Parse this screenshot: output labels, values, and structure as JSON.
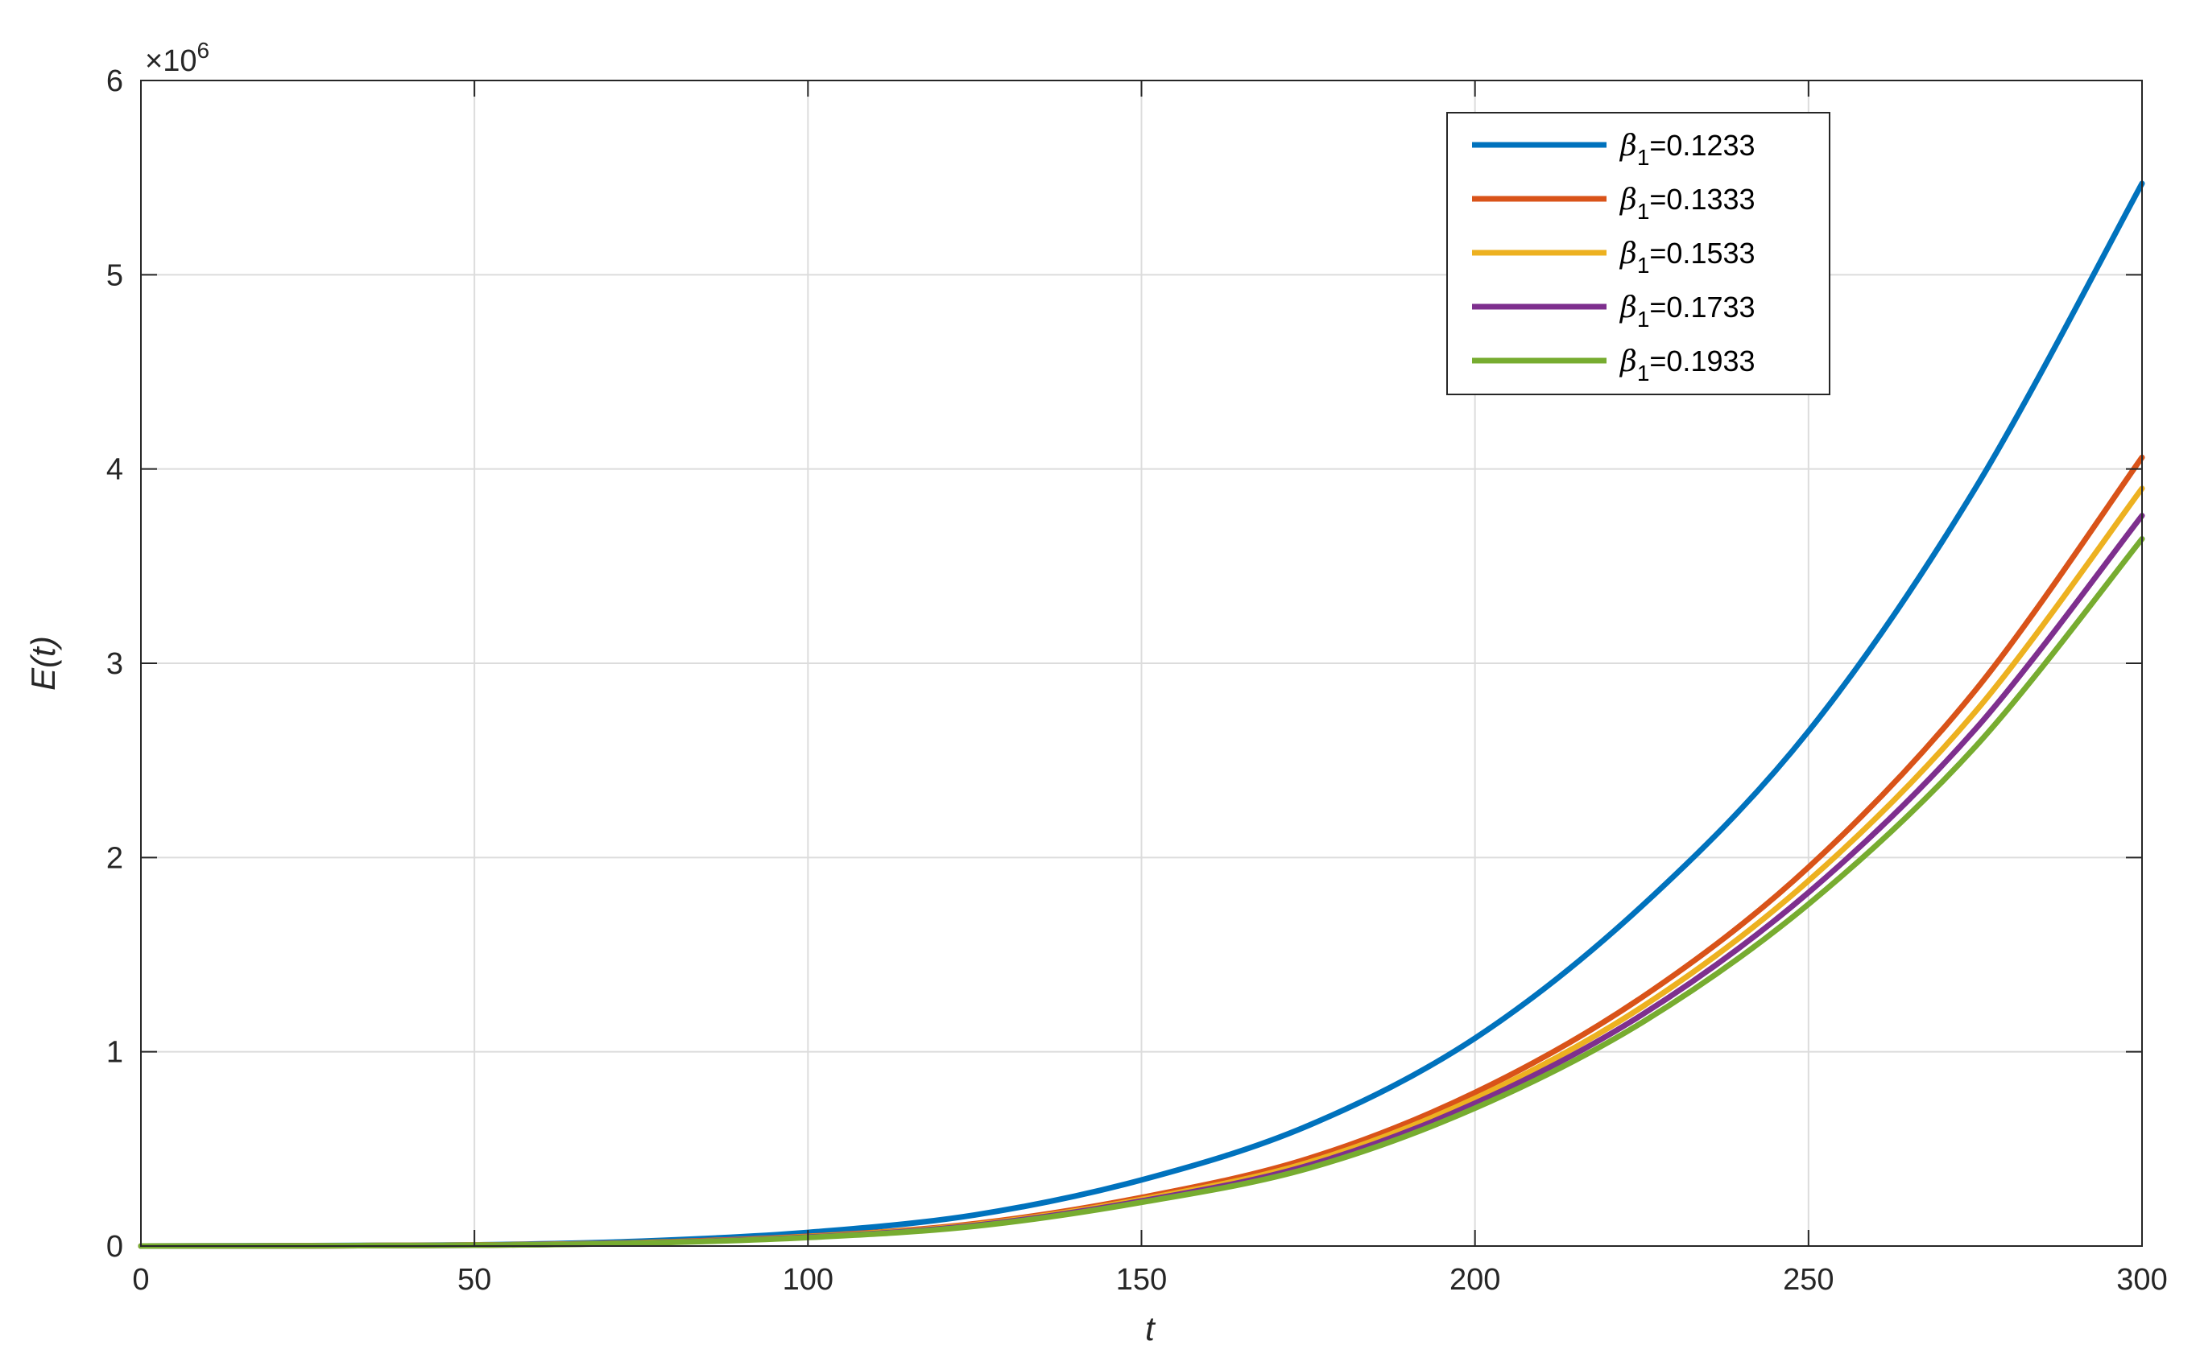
{
  "chart_data": {
    "type": "line",
    "xlabel": "t",
    "ylabel": "E(t)",
    "xlim": [
      0,
      300
    ],
    "ylim": [
      0,
      6000000
    ],
    "xticks": [
      0,
      50,
      100,
      150,
      200,
      250,
      300
    ],
    "yticks": [
      0,
      1,
      2,
      3,
      4,
      5,
      6
    ],
    "y_exponent_label": "×10",
    "y_exponent_power": "6",
    "y_scale": 1000000,
    "grid": true,
    "legend_position": "top-right",
    "x": [
      0,
      25,
      50,
      75,
      100,
      125,
      150,
      175,
      200,
      225,
      250,
      275,
      300
    ],
    "series": [
      {
        "name_symbol": "β",
        "name_subscript": "1",
        "name_value": "=0.1233",
        "color": "#0072BD",
        "values": [
          0,
          2000,
          6000,
          25000,
          70000,
          160000,
          340000,
          620000,
          1070000,
          1750000,
          2650000,
          3900000,
          5470000
        ]
      },
      {
        "name_symbol": "β",
        "name_subscript": "1",
        "name_value": "=0.1333",
        "color": "#D95319",
        "values": [
          0,
          1000,
          5000,
          18000,
          50000,
          115000,
          250000,
          450000,
          790000,
          1280000,
          1950000,
          2860000,
          4060000
        ]
      },
      {
        "name_symbol": "β",
        "name_subscript": "1",
        "name_value": "=0.1533",
        "color": "#EDB120",
        "values": [
          0,
          1000,
          5000,
          17000,
          48000,
          110000,
          240000,
          430000,
          760000,
          1230000,
          1880000,
          2750000,
          3900000
        ]
      },
      {
        "name_symbol": "β",
        "name_subscript": "1",
        "name_value": "=0.1733",
        "color": "#7E2F8E",
        "values": [
          0,
          1000,
          4000,
          16000,
          46000,
          106000,
          232000,
          415000,
          735000,
          1190000,
          1820000,
          2660000,
          3760000
        ]
      },
      {
        "name_symbol": "β",
        "name_subscript": "1",
        "name_value": "=0.1933",
        "color": "#77AC30",
        "values": [
          0,
          1000,
          4000,
          15000,
          44000,
          102000,
          225000,
          400000,
          710000,
          1150000,
          1760000,
          2570000,
          3640000
        ]
      }
    ]
  }
}
